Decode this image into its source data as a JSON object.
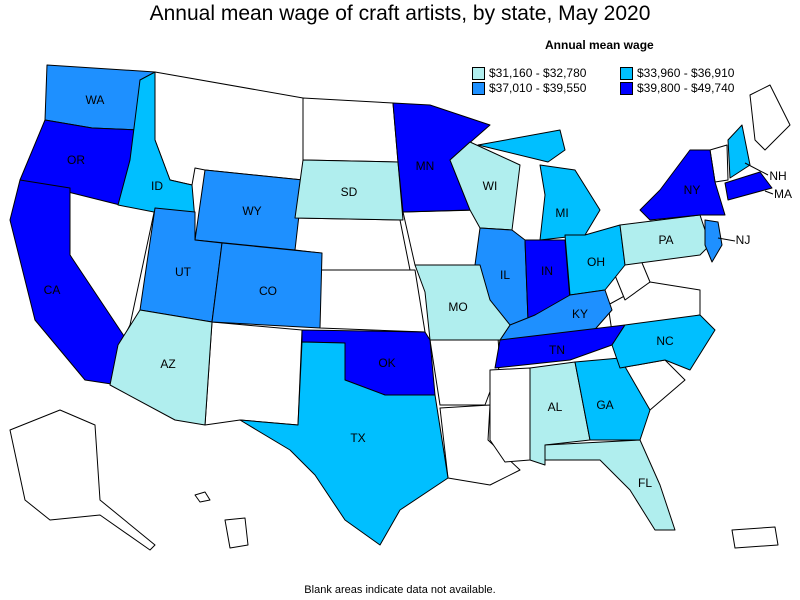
{
  "title": "Annual mean wage of craft artists, by state, May 2020",
  "legend": {
    "title": "Annual mean wage",
    "items": [
      {
        "label": "$31,160 - $32,780",
        "color": "#b0eeee"
      },
      {
        "label": "$33,960 - $36,910",
        "color": "#00bfff"
      },
      {
        "label": "$37,010 - $39,550",
        "color": "#1e90ff"
      },
      {
        "label": "$39,800 - $49,740",
        "color": "#0000ff"
      }
    ]
  },
  "footnote": "Blank areas indicate data not available.",
  "states": [
    {
      "abbr": "WA",
      "bin": 3
    },
    {
      "abbr": "OR",
      "bin": 4
    },
    {
      "abbr": "CA",
      "bin": 4
    },
    {
      "abbr": "ID",
      "bin": 2
    },
    {
      "abbr": "WY",
      "bin": 3
    },
    {
      "abbr": "UT",
      "bin": 3
    },
    {
      "abbr": "CO",
      "bin": 3
    },
    {
      "abbr": "AZ",
      "bin": 1
    },
    {
      "abbr": "SD",
      "bin": 1
    },
    {
      "abbr": "MN",
      "bin": 4
    },
    {
      "abbr": "WI",
      "bin": 1
    },
    {
      "abbr": "MI",
      "bin": 2
    },
    {
      "abbr": "IL",
      "bin": 3
    },
    {
      "abbr": "IN",
      "bin": 4
    },
    {
      "abbr": "OH",
      "bin": 2
    },
    {
      "abbr": "KY",
      "bin": 3
    },
    {
      "abbr": "TN",
      "bin": 4
    },
    {
      "abbr": "MO",
      "bin": 1
    },
    {
      "abbr": "OK",
      "bin": 4
    },
    {
      "abbr": "TX",
      "bin": 2
    },
    {
      "abbr": "AL",
      "bin": 1
    },
    {
      "abbr": "GA",
      "bin": 2
    },
    {
      "abbr": "FL",
      "bin": 1
    },
    {
      "abbr": "NC",
      "bin": 2
    },
    {
      "abbr": "PA",
      "bin": 1
    },
    {
      "abbr": "NY",
      "bin": 4
    },
    {
      "abbr": "NJ",
      "bin": 3
    },
    {
      "abbr": "NH",
      "bin": 2
    },
    {
      "abbr": "MA",
      "bin": 4
    }
  ],
  "blank_states": [
    "MT",
    "ND",
    "NV",
    "NE",
    "KS",
    "NM",
    "IA",
    "AR",
    "LA",
    "MS",
    "SC",
    "VA",
    "WV",
    "MD",
    "DE",
    "VT",
    "ME",
    "CT",
    "RI",
    "AK",
    "HI",
    "PR"
  ]
}
